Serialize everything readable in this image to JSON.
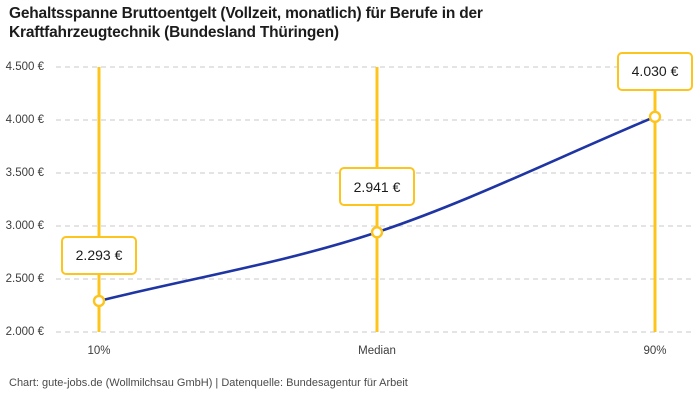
{
  "header": {
    "title_lines": [
      "Gehaltsspanne Bruttoentgelt (Vollzeit, monatlich) für Berufe in der",
      "Kraftfahrzeugtechnik (Bundesland Thüringen)"
    ]
  },
  "footer": {
    "attribution": "Chart: gute-jobs.de (Wollmilchsau GmbH) | Datenquelle: Bundesagentur für Arbeit"
  },
  "chart_data": {
    "type": "line",
    "title": "Gehaltsspanne Bruttoentgelt (Vollzeit, monatlich) für Berufe in der Kraftfahrzeugtechnik (Bundesland Thüringen)",
    "categories": [
      "10%",
      "Median",
      "90%"
    ],
    "values": [
      2293,
      2941,
      4030
    ],
    "points": [
      {
        "label": "10%",
        "value": 2293,
        "display": "2.293 €"
      },
      {
        "label": "Median",
        "value": 2941,
        "display": "2.941 €"
      },
      {
        "label": "90%",
        "value": 4030,
        "display": "4.030 €"
      }
    ],
    "ylim": [
      2000,
      4500
    ],
    "yticks": [
      {
        "value": 2000,
        "label": "2.000 €"
      },
      {
        "value": 2500,
        "label": "2.500 €"
      },
      {
        "value": 3000,
        "label": "3.000 €"
      },
      {
        "value": 3500,
        "label": "3.500 €"
      },
      {
        "value": 4000,
        "label": "4.000 €"
      },
      {
        "value": 4500,
        "label": "4.500 €"
      }
    ],
    "xlabel": "",
    "ylabel": "",
    "grid": "horizontal-dashed",
    "legend": "none",
    "curve": "monotone",
    "colors": {
      "line": "#1e35a3",
      "highlight": "#fcc41c",
      "grid": "#c9c9c9",
      "marker_fill": "#ffffff",
      "title_text": "#1c1c1c",
      "axis_text": "#3d3d3d",
      "footer_text": "#4a4a4a"
    }
  }
}
